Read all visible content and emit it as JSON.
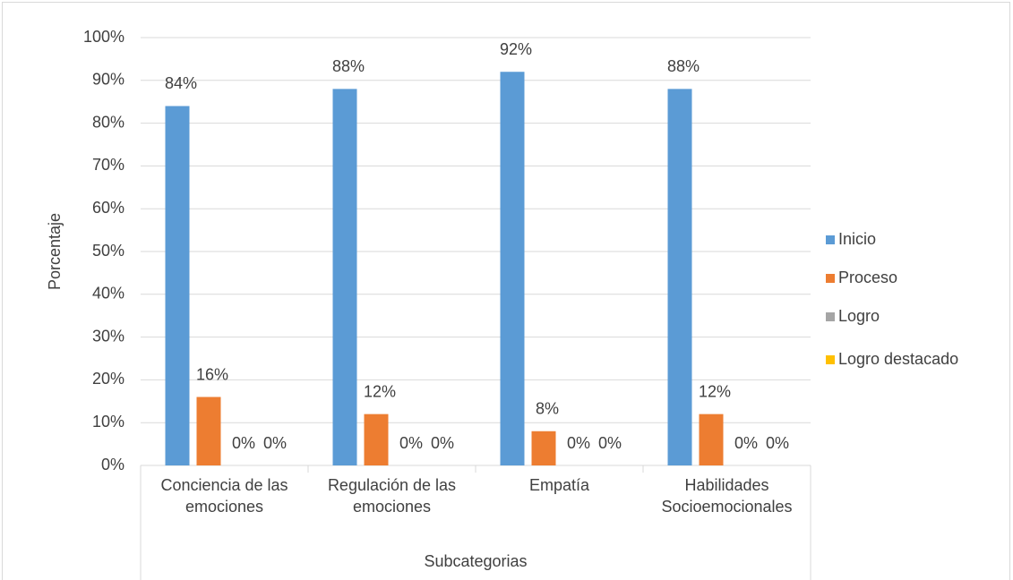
{
  "chart_data": {
    "type": "bar",
    "categories": [
      "Conciencia de las emociones",
      "Regulación de las emociones",
      "Empatía",
      "Habilidades Socioemocionales"
    ],
    "series": [
      {
        "name": "Inicio",
        "color": "#5b9bd5",
        "values": [
          84,
          88,
          92,
          88
        ],
        "value_labels": [
          "84%",
          "88%",
          "92%",
          "88%"
        ]
      },
      {
        "name": "Proceso",
        "color": "#ed7d31",
        "values": [
          16,
          12,
          8,
          12
        ],
        "value_labels": [
          "16%",
          "12%",
          "8%",
          "12%"
        ]
      },
      {
        "name": "Logro",
        "color": "#a5a5a5",
        "values": [
          0,
          0,
          0,
          0
        ],
        "value_labels": [
          "0%",
          "0%",
          "0%",
          "0%"
        ]
      },
      {
        "name": "Logro destacado",
        "color": "#ffc000",
        "values": [
          0,
          0,
          0,
          0
        ],
        "value_labels": [
          "0%",
          "0%",
          "0%",
          "0%"
        ]
      }
    ],
    "ylim": [
      0,
      100
    ],
    "yticks": [
      {
        "value": 0,
        "label": "0%"
      },
      {
        "value": 10,
        "label": "10%"
      },
      {
        "value": 20,
        "label": "20%"
      },
      {
        "value": 30,
        "label": "30%"
      },
      {
        "value": 40,
        "label": "40%"
      },
      {
        "value": 50,
        "label": "50%"
      },
      {
        "value": 60,
        "label": "60%"
      },
      {
        "value": 70,
        "label": "70%"
      },
      {
        "value": 80,
        "label": "80%"
      },
      {
        "value": 90,
        "label": "90%"
      },
      {
        "value": 100,
        "label": "100%"
      }
    ],
    "y_label": "Porcentaje",
    "x_label": "Subcategorias",
    "grid": true,
    "legend": "right"
  }
}
